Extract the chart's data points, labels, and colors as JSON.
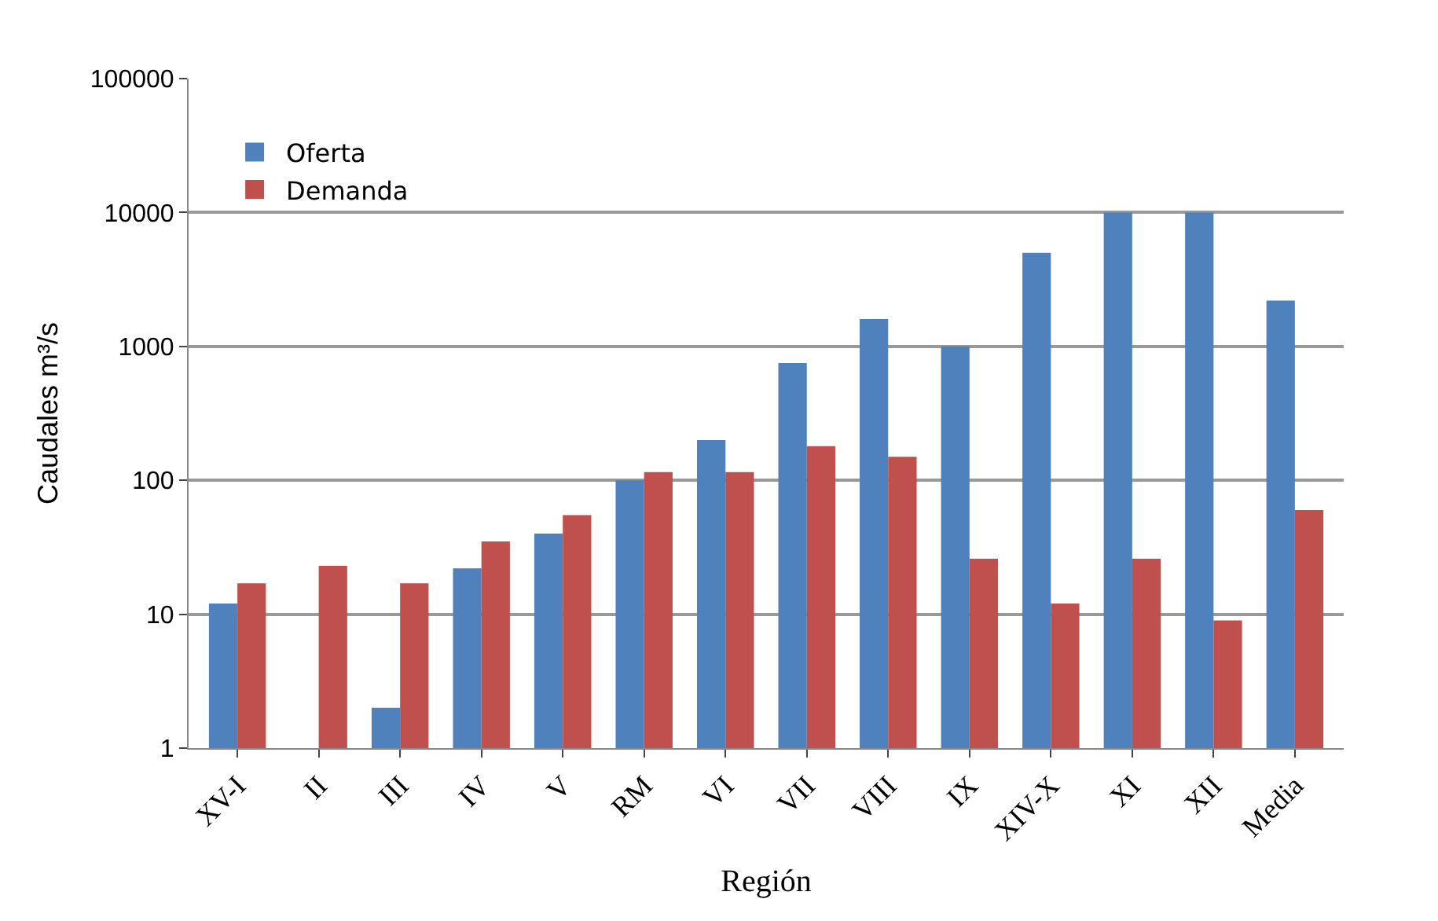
{
  "chart_data": {
    "type": "bar",
    "xlabel": "Región",
    "ylabel": "Caudales m³/s",
    "categories": [
      "XV-I",
      "II",
      "III",
      "IV",
      "V",
      "RM",
      "VI",
      "VII",
      "VIII",
      "IX",
      "XIV-X",
      "XI",
      "XII",
      "Media"
    ],
    "series": [
      {
        "name": "Oferta",
        "color": "#4f81bd",
        "values": [
          12,
          1,
          2,
          22,
          40,
          100,
          200,
          750,
          1600,
          1000,
          5000,
          10000,
          10000,
          2200
        ]
      },
      {
        "name": "Demanda",
        "color": "#c0504d",
        "values": [
          17,
          23,
          17,
          35,
          55,
          115,
          115,
          180,
          150,
          26,
          12,
          26,
          9,
          60
        ]
      }
    ],
    "log": "y",
    "ylim": [
      1,
      100000
    ],
    "yticks": [
      1,
      10,
      100,
      1000,
      10000,
      100000
    ],
    "grid": "y",
    "legend": "top left"
  }
}
